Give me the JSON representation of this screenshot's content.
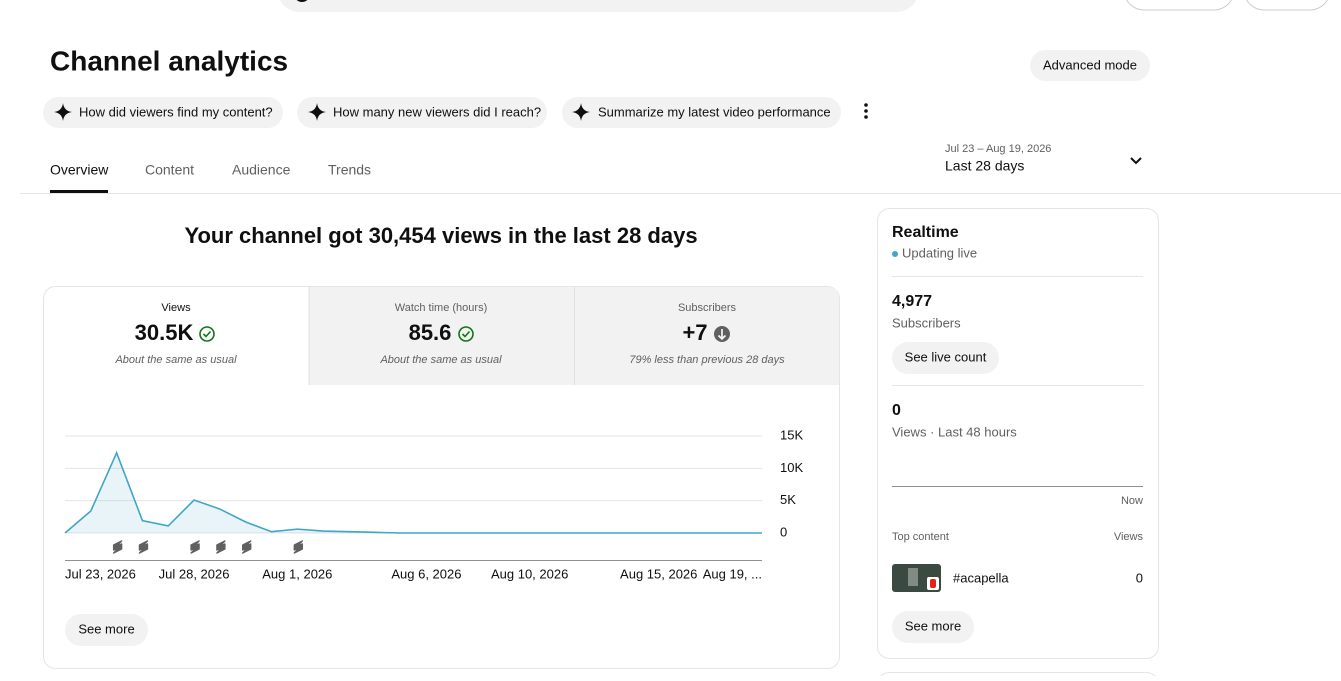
{
  "header": {
    "title": "Channel analytics",
    "advanced_mode": "Advanced mode"
  },
  "suggestions": [
    "How did viewers find my content?",
    "How many new viewers did I reach?",
    "Summarize my latest video performance"
  ],
  "tabs": [
    "Overview",
    "Content",
    "Audience",
    "Trends"
  ],
  "date_range": {
    "dates": "Jul 23 – Aug 19, 2026",
    "label": "Last 28 days"
  },
  "overview": {
    "headline": "Your channel got 30,454 views in the last 28 days",
    "metrics": [
      {
        "label": "Views",
        "value": "30.5K",
        "note": "About the same as usual"
      },
      {
        "label": "Watch time (hours)",
        "value": "85.6",
        "note": "About the same as usual"
      },
      {
        "label": "Subscribers",
        "value": "+7",
        "note": "79% less than previous 28 days"
      }
    ],
    "chart": {
      "type": "line",
      "x": [
        "Jul 23, 2026",
        null,
        null,
        null,
        null,
        "Jul 28, 2026",
        null,
        null,
        null,
        "Aug 1, 2026",
        null,
        null,
        null,
        null,
        "Aug 6, 2026",
        null,
        null,
        null,
        "Aug 10, 2026",
        null,
        null,
        null,
        null,
        "Aug 15, 2026",
        null,
        null,
        null,
        "Aug 19, ..."
      ],
      "values": [
        0,
        3400,
        12400,
        1900,
        1100,
        5100,
        3700,
        1700,
        200,
        600,
        300,
        200,
        100,
        0,
        0,
        0,
        0,
        0,
        0,
        0,
        0,
        0,
        0,
        0,
        0,
        0,
        0,
        0
      ],
      "color": "#3ea6c8",
      "ylim": [
        0,
        15000
      ],
      "yticks": [
        {
          "value": 0,
          "label": "0"
        },
        {
          "value": 5000,
          "label": "5K"
        },
        {
          "value": 10000,
          "label": "10K"
        },
        {
          "value": 15000,
          "label": "15K"
        }
      ],
      "grid": true
    },
    "see_more": "See more"
  },
  "realtime": {
    "title": "Realtime",
    "status": "Updating live",
    "subscribers": "4,977",
    "subscribers_label": "Subscribers",
    "live_count": "See live count",
    "views": "0",
    "views_label": "Views · Last 48 hours",
    "now": "Now",
    "top_content": "Top content",
    "views_header": "Views",
    "items": [
      {
        "title": "#acapella",
        "views": "0"
      }
    ],
    "see_more": "See more"
  }
}
